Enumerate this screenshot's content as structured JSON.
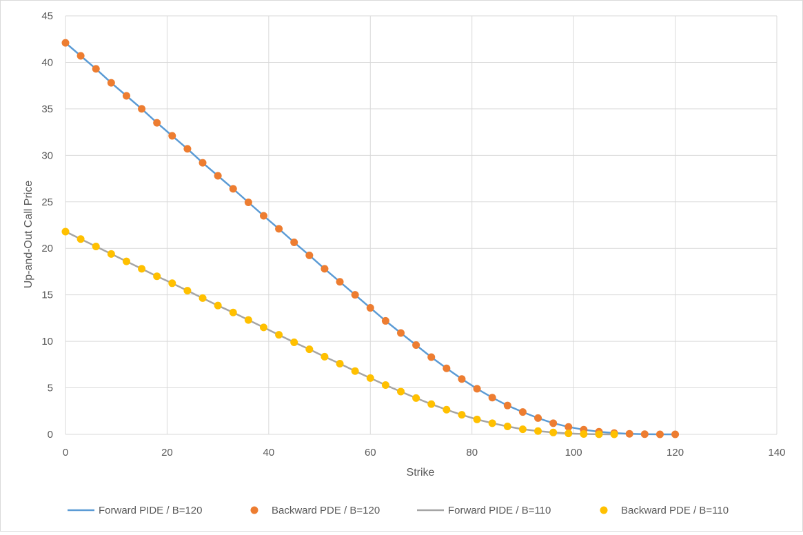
{
  "chart_data": {
    "type": "line",
    "title": "",
    "xlabel": "Strike",
    "ylabel": "Up-and-Out Call Price",
    "xlim": [
      0,
      140
    ],
    "ylim": [
      0,
      45
    ],
    "xticks": [
      0,
      20,
      40,
      60,
      80,
      100,
      120,
      140
    ],
    "yticks": [
      0,
      5,
      10,
      15,
      20,
      25,
      30,
      35,
      40,
      45
    ],
    "grid": true,
    "legend_position": "bottom",
    "series": [
      {
        "name": "Forward PIDE / B=120",
        "kind": "line",
        "color": "#5B9BD5",
        "x": [
          0,
          3,
          6,
          9,
          12,
          15,
          18,
          21,
          24,
          27,
          30,
          33,
          36,
          39,
          42,
          45,
          48,
          51,
          54,
          57,
          60,
          63,
          66,
          69,
          72,
          75,
          78,
          81,
          84,
          87,
          90,
          93,
          96,
          99,
          102,
          105,
          108,
          111,
          114,
          117,
          120
        ],
        "values": [
          42.1,
          40.7,
          39.3,
          37.8,
          36.4,
          35.0,
          33.5,
          32.1,
          30.7,
          29.2,
          27.8,
          26.4,
          24.95,
          23.5,
          22.1,
          20.65,
          19.25,
          17.8,
          16.4,
          15.0,
          13.6,
          12.2,
          10.9,
          9.6,
          8.3,
          7.1,
          5.95,
          4.9,
          3.95,
          3.1,
          2.4,
          1.75,
          1.2,
          0.8,
          0.5,
          0.28,
          0.14,
          0.06,
          0.02,
          0.0,
          0.0
        ]
      },
      {
        "name": "Backward PDE / B=120",
        "kind": "scatter",
        "color": "#ED7D31",
        "x": [
          0,
          3,
          6,
          9,
          12,
          15,
          18,
          21,
          24,
          27,
          30,
          33,
          36,
          39,
          42,
          45,
          48,
          51,
          54,
          57,
          60,
          63,
          66,
          69,
          72,
          75,
          78,
          81,
          84,
          87,
          90,
          93,
          96,
          99,
          102,
          105,
          108,
          111,
          114,
          117,
          120
        ],
        "values": [
          42.1,
          40.7,
          39.3,
          37.8,
          36.4,
          35.0,
          33.5,
          32.1,
          30.7,
          29.2,
          27.8,
          26.4,
          24.95,
          23.5,
          22.1,
          20.65,
          19.25,
          17.8,
          16.4,
          15.0,
          13.6,
          12.2,
          10.9,
          9.6,
          8.3,
          7.1,
          5.95,
          4.9,
          3.95,
          3.1,
          2.4,
          1.75,
          1.2,
          0.8,
          0.5,
          0.28,
          0.14,
          0.06,
          0.02,
          0.0,
          0.0
        ]
      },
      {
        "name": "Forward PIDE / B=110",
        "kind": "line",
        "color": "#A5A5A5",
        "x": [
          0,
          3,
          6,
          9,
          12,
          15,
          18,
          21,
          24,
          27,
          30,
          33,
          36,
          39,
          42,
          45,
          48,
          51,
          54,
          57,
          60,
          63,
          66,
          69,
          72,
          75,
          78,
          81,
          84,
          87,
          90,
          93,
          96,
          99,
          102,
          105,
          108
        ],
        "values": [
          21.8,
          21.0,
          20.2,
          19.4,
          18.6,
          17.8,
          17.0,
          16.25,
          15.45,
          14.65,
          13.85,
          13.1,
          12.3,
          11.5,
          10.7,
          9.9,
          9.15,
          8.35,
          7.6,
          6.8,
          6.05,
          5.3,
          4.6,
          3.9,
          3.25,
          2.65,
          2.1,
          1.6,
          1.2,
          0.85,
          0.55,
          0.35,
          0.2,
          0.1,
          0.04,
          0.01,
          0.0
        ]
      },
      {
        "name": "Backward PDE / B=110",
        "kind": "scatter",
        "color": "#FFC000",
        "x": [
          0,
          3,
          6,
          9,
          12,
          15,
          18,
          21,
          24,
          27,
          30,
          33,
          36,
          39,
          42,
          45,
          48,
          51,
          54,
          57,
          60,
          63,
          66,
          69,
          72,
          75,
          78,
          81,
          84,
          87,
          90,
          93,
          96,
          99,
          102,
          105,
          108
        ],
        "values": [
          21.8,
          21.0,
          20.2,
          19.4,
          18.6,
          17.8,
          17.0,
          16.25,
          15.45,
          14.65,
          13.85,
          13.1,
          12.3,
          11.5,
          10.7,
          9.9,
          9.15,
          8.35,
          7.6,
          6.8,
          6.05,
          5.3,
          4.6,
          3.9,
          3.25,
          2.65,
          2.1,
          1.6,
          1.2,
          0.85,
          0.55,
          0.35,
          0.2,
          0.1,
          0.04,
          0.01,
          0.0
        ]
      }
    ]
  }
}
